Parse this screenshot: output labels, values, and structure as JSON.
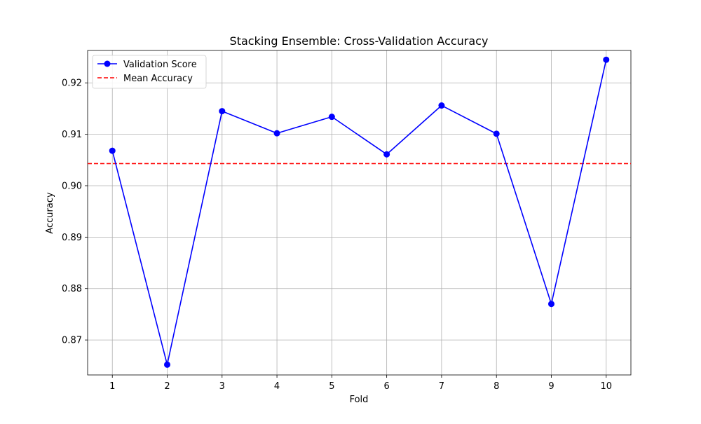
{
  "chart_data": {
    "type": "line",
    "title": "Stacking Ensemble: Cross-Validation Accuracy",
    "xlabel": "Fold",
    "ylabel": "Accuracy",
    "x": [
      1,
      2,
      3,
      4,
      5,
      6,
      7,
      8,
      9,
      10
    ],
    "x_ticks": [
      "1",
      "2",
      "3",
      "4",
      "5",
      "6",
      "7",
      "8",
      "9",
      "10"
    ],
    "y_ticks": [
      "0.87",
      "0.88",
      "0.89",
      "0.90",
      "0.91",
      "0.92"
    ],
    "y_tick_values": [
      0.87,
      0.88,
      0.89,
      0.9,
      0.91,
      0.92
    ],
    "xlim": [
      0.55,
      10.45
    ],
    "ylim": [
      0.8632,
      0.9263
    ],
    "grid": true,
    "legend_position": "top-left",
    "series": [
      {
        "name": "Validation Score",
        "values": [
          0.9068,
          0.8652,
          0.9145,
          0.9102,
          0.9134,
          0.9061,
          0.9156,
          0.9101,
          0.877,
          0.9245
        ],
        "color": "#0000ff",
        "style": "solid",
        "marker": "circle"
      }
    ],
    "reference_lines": [
      {
        "name": "Mean Accuracy",
        "value": 0.9043,
        "color": "#ff0000",
        "style": "dashed"
      }
    ],
    "legend": [
      "Validation Score",
      "Mean Accuracy"
    ]
  }
}
